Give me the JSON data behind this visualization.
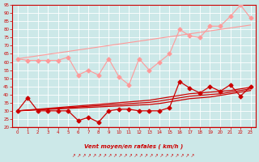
{
  "xlabel": "Vent moyen/en rafales ( km/h )",
  "bg_color": "#cce8e8",
  "grid_color": "#ffffff",
  "xlim": [
    -0.5,
    23.5
  ],
  "ylim": [
    20,
    95
  ],
  "yticks": [
    20,
    25,
    30,
    35,
    40,
    45,
    50,
    55,
    60,
    65,
    70,
    75,
    80,
    85,
    90,
    95
  ],
  "xticks": [
    0,
    1,
    2,
    3,
    4,
    5,
    6,
    7,
    8,
    9,
    10,
    11,
    12,
    13,
    14,
    15,
    16,
    17,
    18,
    19,
    20,
    21,
    22,
    23
  ],
  "x": [
    0,
    1,
    2,
    3,
    4,
    5,
    6,
    7,
    8,
    9,
    10,
    11,
    12,
    13,
    14,
    15,
    16,
    17,
    18,
    19,
    20,
    21,
    22,
    23
  ],
  "line_pink_jagged": [
    62,
    61,
    61,
    61,
    61,
    63,
    52,
    55,
    52,
    62,
    51,
    46,
    62,
    55,
    60,
    65,
    80,
    76,
    75,
    82,
    82,
    88,
    95,
    87
  ],
  "line_pink_trend": [
    62,
    62.9,
    63.8,
    64.7,
    65.6,
    66.5,
    67.4,
    68.3,
    69.2,
    70.1,
    71.0,
    71.9,
    72.8,
    73.7,
    74.6,
    75.5,
    76.4,
    77.3,
    78.2,
    79.1,
    80.0,
    80.9,
    81.8,
    82.7
  ],
  "line_red_jagged": [
    30,
    38,
    30,
    30,
    30,
    30,
    24,
    26,
    23,
    30,
    31,
    31,
    30,
    30,
    30,
    32,
    48,
    44,
    41,
    45,
    42,
    46,
    39,
    45
  ],
  "line_red_trend1": [
    30,
    30.5,
    31.0,
    31.5,
    32.0,
    32.5,
    33.0,
    33.5,
    34.0,
    34.5,
    35.0,
    35.5,
    36.0,
    36.5,
    37.5,
    38.5,
    39.5,
    40.5,
    41.0,
    41.5,
    42.0,
    42.5,
    43.5,
    44.5
  ],
  "line_red_trend2": [
    30,
    30.4,
    30.8,
    31.2,
    31.6,
    32.0,
    32.4,
    32.8,
    33.2,
    33.6,
    34.0,
    34.4,
    34.8,
    35.2,
    36.0,
    37.0,
    38.0,
    39.0,
    39.5,
    40.0,
    40.5,
    41.5,
    42.5,
    43.5
  ],
  "line_red_trend3": [
    30,
    30.3,
    30.6,
    30.9,
    31.2,
    31.5,
    31.8,
    32.1,
    32.4,
    32.7,
    33.0,
    33.3,
    33.6,
    33.9,
    34.5,
    35.5,
    36.5,
    37.5,
    38.0,
    38.5,
    39.5,
    40.5,
    41.5,
    42.5
  ],
  "pink_color": "#ff9999",
  "red_color": "#cc0000",
  "axis_color": "#cc0000"
}
